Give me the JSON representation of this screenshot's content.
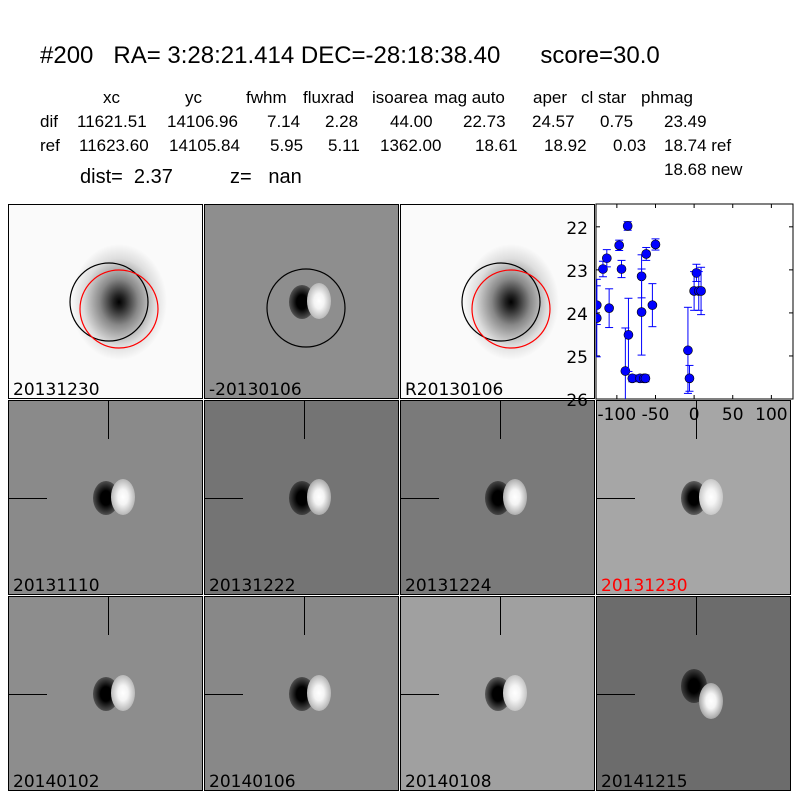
{
  "header": {
    "title": "#200   RA= 3:28:21.414 DEC=-28:18:38.40      score=30.0",
    "columns": [
      "xc",
      "yc",
      "fwhm",
      "fluxrad",
      "isoarea",
      "mag auto",
      "aper",
      "cl star",
      "phmag"
    ],
    "dif": [
      "dif",
      "11621.51",
      "14106.96",
      "7.14",
      "2.28",
      "44.00",
      "22.73",
      "24.57",
      "0.75",
      "23.49"
    ],
    "ref": [
      "ref",
      "11623.60",
      "14105.84",
      "5.95",
      "5.11",
      "1362.00",
      "18.61",
      "18.92",
      "0.03",
      "18.74 ref"
    ],
    "new_mag": "18.68 new",
    "dist": "dist=  2.37",
    "z": "z=   nan"
  },
  "panels": [
    {
      "label": "20131230",
      "kind": "ref",
      "label_color": "#000000"
    },
    {
      "label": "-20130106",
      "kind": "diff-circle",
      "label_color": "#000000"
    },
    {
      "label": "R20130106",
      "kind": "ref",
      "label_color": "#000000"
    },
    {
      "label": "",
      "kind": "chart",
      "label_color": "#000000"
    },
    {
      "label": "20131110",
      "kind": "diff",
      "label_color": "#000000"
    },
    {
      "label": "20131222",
      "kind": "diff",
      "label_color": "#000000"
    },
    {
      "label": "20131224",
      "kind": "diff",
      "label_color": "#000000"
    },
    {
      "label": "20131230",
      "kind": "diff",
      "label_color": "#ff0000"
    },
    {
      "label": "20140102",
      "kind": "diff",
      "label_color": "#000000"
    },
    {
      "label": "20140106",
      "kind": "diff",
      "label_color": "#000000"
    },
    {
      "label": "20140108",
      "kind": "diff",
      "label_color": "#000000"
    },
    {
      "label": "20141215",
      "kind": "diff",
      "label_color": "#000000"
    }
  ],
  "chart_data": {
    "type": "scatter",
    "title": "",
    "xlabel": "",
    "ylabel": "",
    "xlim": [
      -127,
      128
    ],
    "ylim": [
      26,
      21.47
    ],
    "y_inverted": true,
    "xticks": [
      -100,
      -50,
      0,
      50,
      100
    ],
    "yticks": [
      22,
      23,
      24,
      25,
      26
    ],
    "color": "#0000ff",
    "points": [
      {
        "x": -126,
        "y": 23.82,
        "err": 0.45
      },
      {
        "x": -126,
        "y": 24.12,
        "err": 0.9
      },
      {
        "x": -118,
        "y": 22.98,
        "err": 0.18
      },
      {
        "x": -113,
        "y": 22.73,
        "err": 0.2
      },
      {
        "x": -110,
        "y": 23.89,
        "err": 0.45
      },
      {
        "x": -97,
        "y": 22.43,
        "err": 0.12
      },
      {
        "x": -94,
        "y": 22.98,
        "err": 0.2
      },
      {
        "x": -86,
        "y": 21.98,
        "err": 0.1
      },
      {
        "x": -89,
        "y": 25.35,
        "err": 1.0
      },
      {
        "x": -85,
        "y": 24.51,
        "err": 0.85
      },
      {
        "x": -80,
        "y": 25.52,
        "err": 0.08
      },
      {
        "x": -70,
        "y": 25.52,
        "err": 0.08
      },
      {
        "x": -65,
        "y": 25.52,
        "err": 0.08
      },
      {
        "x": -63,
        "y": 25.52,
        "err": 0.08
      },
      {
        "x": -68,
        "y": 23.15,
        "err": 0.5
      },
      {
        "x": -68,
        "y": 23.98,
        "err": 1.0
      },
      {
        "x": -62,
        "y": 22.63,
        "err": 0.15
      },
      {
        "x": -54,
        "y": 23.82,
        "err": 0.5
      },
      {
        "x": -50,
        "y": 22.41,
        "err": 0.13
      },
      {
        "x": -8,
        "y": 24.87,
        "err": 1.0
      },
      {
        "x": -6,
        "y": 25.52,
        "err": 0.3
      },
      {
        "x": 0,
        "y": 23.49,
        "err": 0.45
      },
      {
        "x": 3,
        "y": 23.07,
        "err": 0.2
      },
      {
        "x": 6,
        "y": 23.49,
        "err": 0.45
      },
      {
        "x": 9,
        "y": 23.49,
        "err": 0.55
      }
    ]
  }
}
